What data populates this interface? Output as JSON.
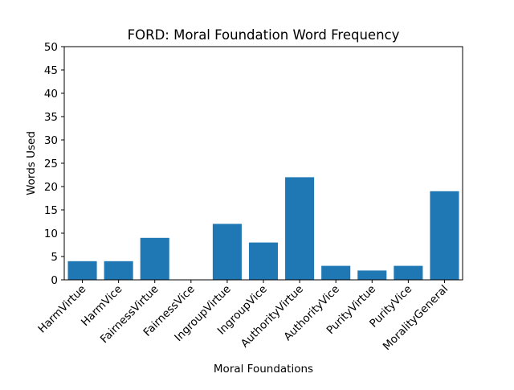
{
  "chart_data": {
    "type": "bar",
    "title": "FORD: Moral Foundation Word Frequency",
    "xlabel": "Moral Foundations",
    "ylabel": "Words Used",
    "categories": [
      "HarmVirtue",
      "HarmVice",
      "FairnessVirtue",
      "FairnessVice",
      "IngroupVirtue",
      "IngroupVice",
      "AuthorityVirtue",
      "AuthorityVice",
      "PurityVirtue",
      "PurityVice",
      "MoralityGeneral"
    ],
    "values": [
      4,
      4,
      9,
      0,
      12,
      8,
      22,
      3,
      2,
      3,
      19
    ],
    "ylim": [
      0,
      50
    ],
    "yticks": [
      0,
      5,
      10,
      15,
      20,
      25,
      30,
      35,
      40,
      45,
      50
    ],
    "grid": false,
    "bar_color": "#1f77b4"
  }
}
